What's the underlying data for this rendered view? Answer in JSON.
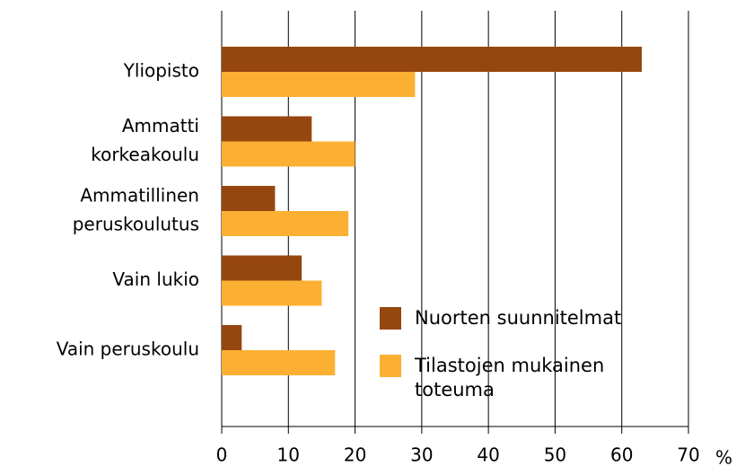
{
  "chart_data": {
    "type": "hbar",
    "categories": [
      [
        "Yliopisto"
      ],
      [
        "Ammatti",
        "korkeakoulu"
      ],
      [
        "Ammatillinen",
        "peruskoulutus"
      ],
      [
        "Vain lukio"
      ],
      [
        "Vain peruskoulu"
      ]
    ],
    "series": [
      {
        "name": "Nuorten suunnitelmat",
        "color": "#96470f",
        "values": [
          63,
          13.5,
          8,
          12,
          3
        ]
      },
      {
        "name": "Tilastojen mukainen toteuma",
        "color": "#fbb034",
        "values": [
          29,
          20,
          19,
          15,
          17
        ]
      }
    ],
    "xlim": [
      0,
      70
    ],
    "xticks": [
      0,
      10,
      20,
      30,
      40,
      50,
      60,
      70
    ],
    "x_unit": "%",
    "grid": true
  }
}
